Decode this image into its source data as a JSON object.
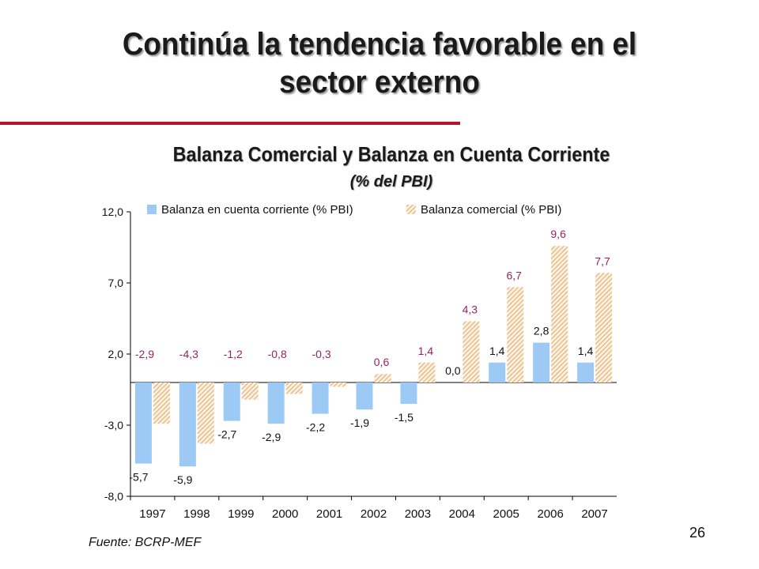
{
  "slide": {
    "title_line1": "Continúa la tendencia favorable en el",
    "title_line2": "sector externo",
    "accent_color": "#b3162b",
    "source": "Fuente: BCRP-MEF",
    "page_number": "26"
  },
  "chart_data": {
    "type": "bar",
    "title": "Balanza Comercial y Balanza en Cuenta Corriente",
    "subtitle": "(% del PBI)",
    "categories": [
      "1997",
      "1998",
      "1999",
      "2000",
      "2001",
      "2002",
      "2003",
      "2004",
      "2005",
      "2006",
      "2007"
    ],
    "series": [
      {
        "name": "Balanza en cuenta corriente (% PBI)",
        "values": [
          -5.7,
          -5.9,
          -2.7,
          -2.9,
          -2.2,
          -1.9,
          -1.5,
          0.0,
          1.4,
          2.8,
          1.4
        ],
        "labels": [
          "-5,7",
          "-5,9",
          "-2,7",
          "-2,9",
          "-2,2",
          "-1,9",
          "-1,5",
          "0,0",
          "1,4",
          "2,8",
          "1,4"
        ],
        "color": "#9dcaf5",
        "label_color": "#111111",
        "pattern": "solid"
      },
      {
        "name": "Balanza comercial (% PBI)",
        "values": [
          -2.9,
          -4.3,
          -1.2,
          -0.8,
          -0.3,
          0.6,
          1.4,
          4.3,
          6.7,
          9.6,
          7.7
        ],
        "labels": [
          "-2,9",
          "-4,3",
          "-1,2",
          "-0,8",
          "-0,3",
          "0,6",
          "1,4",
          "4,3",
          "6,7",
          "9,6",
          "7,7"
        ],
        "color": "#e8b878",
        "label_color": "#93265a",
        "pattern": "diagonal-hatch"
      }
    ],
    "yticks": [
      12.0,
      7.0,
      2.0,
      -3.0,
      -8.0
    ],
    "ytick_labels": [
      "12,0",
      "7,0",
      "2,0",
      "-3,0",
      "-8,0"
    ],
    "ylim": [
      -8.0,
      12.0
    ],
    "legend_position": "top",
    "grid": false
  }
}
